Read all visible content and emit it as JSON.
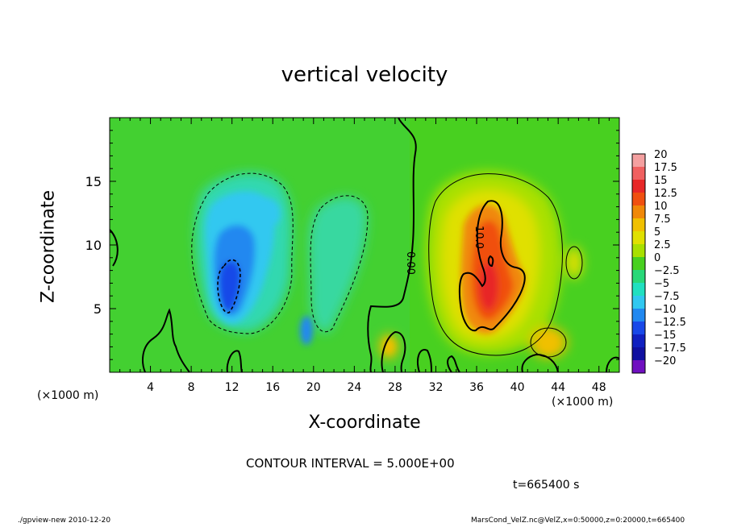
{
  "chart_data": {
    "type": "heatmap",
    "title": "vertical velocity",
    "xlabel": "X-coordinate",
    "ylabel": "Z-coordinate",
    "x_unit_label": "(×1000 m)",
    "x_ticks": [
      "4",
      "8",
      "12",
      "16",
      "20",
      "24",
      "28",
      "32",
      "36",
      "40",
      "44",
      "48"
    ],
    "x_tick_values": [
      4,
      8,
      12,
      16,
      20,
      24,
      28,
      32,
      36,
      40,
      44,
      48
    ],
    "y_ticks": [
      "5",
      "10",
      "15"
    ],
    "y_tick_values": [
      5,
      10,
      15
    ],
    "xlim": [
      0,
      50
    ],
    "ylim": [
      0,
      20
    ],
    "colorbar_labels": [
      "20",
      "17.5",
      "15",
      "12.5",
      "10",
      "7.5",
      "5",
      "2.5",
      "0",
      "−2.5",
      "−5",
      "−7.5",
      "−10",
      "−12.5",
      "−15",
      "−17.5",
      "−20"
    ],
    "colorbar_colors": [
      "#f4a0a0",
      "#f06060",
      "#e82828",
      "#f05010",
      "#f08808",
      "#f0c000",
      "#e0e000",
      "#a8e000",
      "#48d020",
      "#28d878",
      "#20e0c0",
      "#30c8f0",
      "#2088f0",
      "#1848e8",
      "#1020c0",
      "#1010a0",
      "#7010c0"
    ],
    "contour_labels": [
      "0.00",
      "10.0"
    ],
    "contour_interval": "CONTOUR INTERVAL = 5.000E+00",
    "features": [
      {
        "kind": "updraft",
        "center": [
          37.5,
          8.5
        ],
        "peak": 15
      },
      {
        "kind": "downdraft",
        "center": [
          13,
          7
        ],
        "peak": -10
      },
      {
        "kind": "weak updraft",
        "center": [
          43.5,
          3
        ],
        "peak": 7.5
      },
      {
        "kind": "weak updraft",
        "center": [
          27.5,
          2
        ],
        "peak": 7.5
      }
    ]
  },
  "annotations": {
    "time": "t=665400 s",
    "footer_left": "./gpview-new  2010-12-20",
    "footer_right": "MarsCond_VelZ.nc@VelZ,x=0:50000,z=0:20000,t=665400"
  },
  "colors": {
    "background_field": "#48d020",
    "frame": "#000000"
  }
}
